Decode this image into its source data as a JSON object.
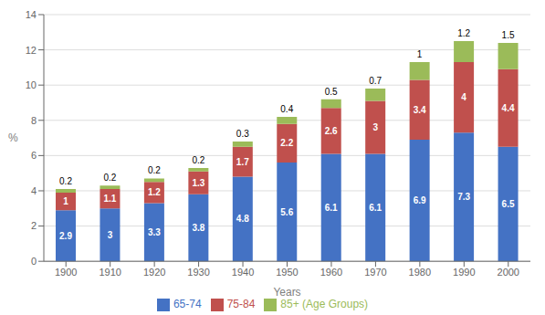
{
  "chart_data": {
    "type": "bar",
    "stacked": true,
    "categories": [
      "1900",
      "1910",
      "1920",
      "1930",
      "1940",
      "1950",
      "1960",
      "1970",
      "1980",
      "1990",
      "2000"
    ],
    "series": [
      {
        "name": "65-74",
        "color": "#4472C4",
        "values": [
          2.9,
          3.0,
          3.3,
          3.8,
          4.8,
          5.6,
          6.1,
          6.1,
          6.9,
          7.3,
          6.5
        ]
      },
      {
        "name": "75-84",
        "color": "#C0504D",
        "values": [
          1.0,
          1.1,
          1.2,
          1.3,
          1.7,
          2.2,
          2.6,
          3.0,
          3.4,
          4.0,
          4.4
        ]
      },
      {
        "name": "85+  (Age Groups)",
        "color": "#9BBB59",
        "values": [
          0.2,
          0.2,
          0.2,
          0.2,
          0.3,
          0.4,
          0.5,
          0.7,
          1.0,
          1.2,
          1.5
        ]
      }
    ],
    "xlabel": "Years",
    "ylabel": "%",
    "ylim": [
      0,
      14
    ],
    "yticks": [
      0,
      2,
      4,
      6,
      8,
      10,
      12,
      14
    ],
    "grid": true,
    "data_labels": true,
    "legend": "bottom"
  }
}
